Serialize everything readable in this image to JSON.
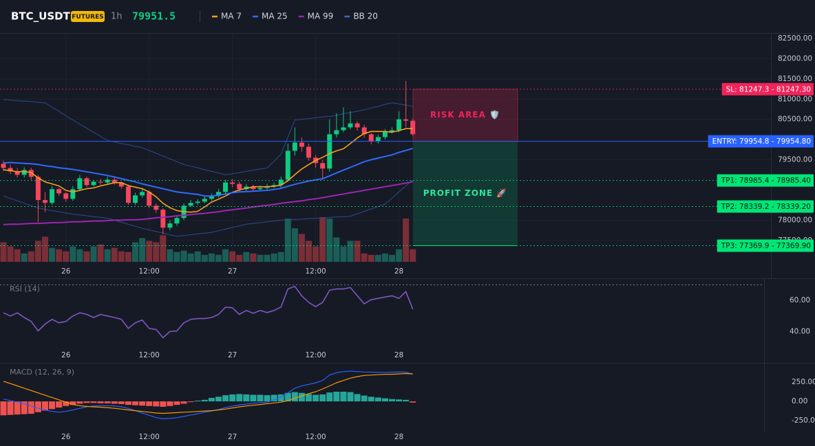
{
  "header": {
    "symbol": "BTC_USDT",
    "badge": "FUTURES",
    "interval": "1h",
    "price": 79951.5
  },
  "chart_data": [
    {
      "type": "candlestick",
      "categories": [
        null,
        null,
        null,
        null,
        null,
        null,
        null,
        null,
        null,
        "26",
        null,
        null,
        null,
        null,
        null,
        null,
        null,
        null,
        null,
        null,
        null,
        "12:00",
        null,
        null,
        null,
        null,
        null,
        null,
        null,
        null,
        null,
        null,
        null,
        "27",
        null,
        null,
        null,
        null,
        null,
        null,
        null,
        null,
        null,
        null,
        null,
        "12:00",
        null,
        null,
        null,
        null,
        null,
        null,
        null,
        null,
        null,
        null,
        null,
        "28",
        null,
        null
      ],
      "open": [
        79400,
        79295,
        79210,
        79125,
        79245,
        79075,
        78500,
        78430,
        78770,
        78665,
        78530,
        78770,
        79040,
        78870,
        78955,
        78935,
        79005,
        78935,
        78835,
        78430,
        78615,
        78700,
        78360,
        78260,
        77815,
        77920,
        78055,
        78360,
        78430,
        78460,
        78530,
        78600,
        78700,
        78935,
        78900,
        78770,
        78835,
        78770,
        78800,
        78835,
        78870,
        79005,
        79720,
        79925,
        79820,
        79550,
        79415,
        79280,
        80130,
        80230,
        80300,
        80400,
        80300,
        80130,
        79960,
        80060,
        80195,
        80230,
        80500,
        80465
      ],
      "high": [
        79480,
        79380,
        79290,
        79310,
        79300,
        79120,
        78700,
        78850,
        78800,
        78700,
        78850,
        79120,
        79080,
        79000,
        79020,
        79080,
        79060,
        78960,
        78880,
        78680,
        78780,
        78740,
        78420,
        78300,
        78000,
        78120,
        78420,
        78500,
        78520,
        78590,
        78660,
        78780,
        79000,
        79020,
        78960,
        78900,
        78880,
        78860,
        78900,
        78930,
        79080,
        79900,
        80300,
        80050,
        79900,
        79620,
        79500,
        80500,
        80650,
        80800,
        80700,
        80450,
        80360,
        80160,
        80120,
        80260,
        80300,
        80700,
        81450,
        80520
      ],
      "low": [
        79220,
        79140,
        79060,
        79060,
        79000,
        77950,
        78200,
        78380,
        78600,
        78460,
        78480,
        78720,
        78820,
        78830,
        78880,
        78900,
        78880,
        78780,
        78380,
        78380,
        78560,
        78300,
        78180,
        77650,
        77750,
        77860,
        78000,
        78330,
        78380,
        78420,
        78480,
        78560,
        78650,
        78820,
        78700,
        78720,
        78720,
        78720,
        78760,
        78790,
        78800,
        78950,
        79600,
        79700,
        79480,
        79300,
        79000,
        79200,
        80050,
        80180,
        80250,
        80220,
        80050,
        79880,
        79900,
        80000,
        80150,
        80180,
        80300,
        80080
      ],
      "close": [
        79295,
        79210,
        79125,
        79245,
        79075,
        78500,
        78430,
        78770,
        78665,
        78530,
        78770,
        79040,
        78870,
        78955,
        78935,
        79005,
        78935,
        78835,
        78430,
        78615,
        78700,
        78360,
        78260,
        77815,
        77920,
        78055,
        78360,
        78430,
        78460,
        78530,
        78600,
        78700,
        78935,
        78900,
        78770,
        78835,
        78770,
        78800,
        78835,
        78870,
        79005,
        79720,
        79925,
        79820,
        79550,
        79415,
        79280,
        80130,
        80230,
        80300,
        80400,
        80300,
        80130,
        79960,
        80060,
        80195,
        80230,
        80500,
        80465,
        80130
      ],
      "volume": [
        280,
        220,
        180,
        120,
        150,
        300,
        360,
        200,
        180,
        150,
        220,
        180,
        150,
        220,
        250,
        180,
        200,
        150,
        140,
        280,
        340,
        300,
        280,
        380,
        180,
        140,
        160,
        120,
        150,
        100,
        120,
        100,
        180,
        150,
        100,
        140,
        120,
        100,
        100,
        120,
        140,
        620,
        480,
        400,
        300,
        220,
        640,
        620,
        350,
        220,
        300,
        300,
        120,
        100,
        100,
        120,
        100,
        180,
        620,
        180
      ],
      "up_color": "#0ecb81",
      "down_color": "#f6465d",
      "volume_up_color": "#1b5e57",
      "volume_down_color": "#7a2e38",
      "series": [
        {
          "name": "MA 7",
          "color": "#f7a21b",
          "values": [
            79250,
            79230,
            79200,
            79210,
            79180,
            79050,
            78950,
            78900,
            78850,
            78740,
            78700,
            78740,
            78780,
            78800,
            78850,
            78890,
            78930,
            78930,
            78860,
            78820,
            78780,
            78700,
            78580,
            78420,
            78310,
            78240,
            78210,
            78200,
            78220,
            78330,
            78450,
            78520,
            78600,
            78690,
            78750,
            78790,
            78830,
            78830,
            78830,
            78840,
            78870,
            78980,
            79130,
            79270,
            79380,
            79480,
            79560,
            79650,
            79720,
            79770,
            79900,
            80040,
            80150,
            80200,
            80200,
            80200,
            80180,
            80220,
            80270,
            80270
          ]
        },
        {
          "name": "MA 25",
          "color": "#2f6bff",
          "values": [
            79420,
            79430,
            79420,
            79410,
            79400,
            79380,
            79350,
            79330,
            79300,
            79280,
            79260,
            79230,
            79200,
            79170,
            79140,
            79110,
            79070,
            79030,
            78990,
            78950,
            78900,
            78860,
            78820,
            78780,
            78740,
            78700,
            78680,
            78660,
            78640,
            78600,
            78600,
            78620,
            78650,
            78680,
            78700,
            78710,
            78720,
            78730,
            78740,
            78760,
            78790,
            78840,
            78890,
            78930,
            78970,
            79000,
            79030,
            79100,
            79170,
            79240,
            79310,
            79380,
            79450,
            79500,
            79540,
            79580,
            79620,
            79680,
            79730,
            79780
          ]
        },
        {
          "name": "MA 99",
          "color": "#9c27b0",
          "values": [
            77890,
            77900,
            77900,
            77910,
            77920,
            77920,
            77930,
            77940,
            77940,
            77950,
            77960,
            77960,
            77970,
            77980,
            77980,
            77990,
            78000,
            78000,
            78010,
            78010,
            78020,
            78040,
            78060,
            78070,
            78090,
            78110,
            78120,
            78140,
            78160,
            78170,
            78190,
            78210,
            78240,
            78260,
            78280,
            78300,
            78330,
            78350,
            78370,
            78390,
            78420,
            78440,
            78460,
            78480,
            78510,
            78530,
            78560,
            78590,
            78620,
            78650,
            78680,
            78710,
            78740,
            78770,
            78800,
            78830,
            78860,
            78890,
            78920,
            78955
          ]
        },
        {
          "name": "BB 20",
          "color": "#2a4c8f",
          "upper": [
            80990,
            80980,
            80960,
            80950,
            80940,
            80920,
            80910,
            80800,
            80700,
            80590,
            80485,
            80380,
            80280,
            80180,
            80080,
            79975,
            79940,
            79900,
            79870,
            79830,
            79800,
            79730,
            79660,
            79590,
            79520,
            79450,
            79380,
            79340,
            79300,
            79250,
            79210,
            79170,
            79125,
            79150,
            79180,
            79210,
            79240,
            79270,
            79295,
            79460,
            79635,
            80060,
            80485,
            80500,
            80520,
            80540,
            80560,
            80570,
            80600,
            80640,
            80670,
            80700,
            80740,
            80780,
            80820,
            80870,
            80910,
            80880,
            80850,
            80825
          ],
          "lower": [
            78600,
            78540,
            78480,
            78420,
            78360,
            78300,
            78270,
            78240,
            78210,
            78180,
            78150,
            78130,
            78110,
            78090,
            78070,
            78050,
            78000,
            77950,
            77900,
            77850,
            77800,
            77760,
            77720,
            77680,
            77640,
            77600,
            77620,
            77640,
            77660,
            77680,
            77700,
            77740,
            77780,
            77820,
            77860,
            77900,
            77920,
            77940,
            77960,
            77980,
            78000,
            78010,
            78020,
            78030,
            78040,
            78050,
            78060,
            78070,
            78080,
            78090,
            78100,
            78160,
            78220,
            78280,
            78340,
            78400,
            78550,
            78700,
            78850,
            79000
          ]
        }
      ],
      "ylim": [
        76560,
        82640
      ],
      "yticks": [
        {
          "value": 82500,
          "label": "82500.00"
        },
        {
          "value": 82000,
          "label": "82000.00"
        },
        {
          "value": 81500,
          "label": "81500.00"
        },
        {
          "value": 81000,
          "label": "81000.00"
        },
        {
          "value": 80500,
          "label": "80500.00"
        },
        {
          "value": 79500,
          "label": "79500.00"
        },
        {
          "value": 78000,
          "label": "78000.00"
        },
        {
          "value": 77500,
          "label": "77500.00"
        }
      ],
      "levels": [
        {
          "label": "SL: 81247.3 - 81247.30",
          "value": 81247.3,
          "color": "#f0245a",
          "text_color": "#ffffff",
          "line_style": "dotted"
        },
        {
          "label": "ENTRY: 79954.8 - 79954.80",
          "value": 79954.8,
          "color": "#2962ff",
          "text_color": "#ffffff",
          "line_style": "solid"
        },
        {
          "label": "TP1: 78985.4 - 78985.40",
          "value": 78985.4,
          "color": "#00e676",
          "text_color": "#0b1a12",
          "line_style": "dotted"
        },
        {
          "label": "TP2: 78339.2 - 78339.20",
          "value": 78339.2,
          "color": "#00e676",
          "text_color": "#0b1a12",
          "line_style": "dotted"
        },
        {
          "label": "TP3: 77369.9 - 77369.90",
          "value": 77369.9,
          "color": "#00e676",
          "text_color": "#0b1a12",
          "line_style": "dotted"
        }
      ],
      "annotations": [
        "RISK AREA 🛡️",
        "PROFIT ZONE 🚀"
      ]
    },
    {
      "type": "line",
      "title": "RSI (14)",
      "color": "#7e57c2",
      "categories": [
        null,
        null,
        null,
        null,
        null,
        null,
        null,
        null,
        null,
        "26",
        null,
        null,
        null,
        null,
        null,
        null,
        null,
        null,
        null,
        null,
        null,
        "12:00",
        null,
        null,
        null,
        null,
        null,
        null,
        null,
        null,
        null,
        null,
        null,
        "27",
        null,
        null,
        null,
        null,
        null,
        null,
        null,
        null,
        null,
        null,
        null,
        "12:00",
        null,
        null,
        null,
        null,
        null,
        null,
        null,
        null,
        null,
        null,
        null,
        "28",
        null,
        null
      ],
      "values": [
        52,
        50,
        52,
        49,
        46.5,
        40.4,
        44.8,
        47.8,
        45.6,
        46.5,
        50,
        52,
        51,
        49,
        51,
        50,
        49,
        47.8,
        42,
        45.6,
        47.4,
        42,
        41.3,
        36,
        40,
        40.4,
        45.6,
        47.8,
        48.3,
        48.3,
        49,
        51,
        55.7,
        55.3,
        51,
        53.5,
        51.7,
        53.5,
        52.2,
        53.5,
        55.7,
        67.4,
        69,
        63,
        58.7,
        56,
        58.7,
        66.5,
        67.4,
        67.4,
        68.3,
        63,
        57.8,
        60.4,
        61.3,
        62.2,
        63,
        61.3,
        65.7,
        54.3
      ],
      "ylim": [
        30,
        72
      ],
      "yticks": [
        {
          "value": 60,
          "label": "60.00"
        },
        {
          "value": 40,
          "label": "40.00"
        }
      ],
      "levels": [
        70
      ]
    },
    {
      "type": "macd",
      "title": "MACD (12, 26, 9)",
      "categories": [
        null,
        null,
        null,
        null,
        null,
        null,
        null,
        null,
        null,
        "26",
        null,
        null,
        null,
        null,
        null,
        null,
        null,
        null,
        null,
        null,
        null,
        "12:00",
        null,
        null,
        null,
        null,
        null,
        null,
        null,
        null,
        null,
        null,
        null,
        "27",
        null,
        null,
        null,
        null,
        null,
        null,
        null,
        null,
        null,
        null,
        null,
        "12:00",
        null,
        null,
        null,
        null,
        null,
        null,
        null,
        null,
        null,
        null,
        null,
        "28",
        null,
        null
      ],
      "macd": [
        30,
        10,
        -10,
        -30,
        -60,
        -90,
        -110,
        -130,
        -140,
        -130,
        -110,
        -90,
        -70,
        -60,
        -55,
        -55,
        -60,
        -70,
        -90,
        -120,
        -150,
        -180,
        -210,
        -225,
        -220,
        -210,
        -195,
        -175,
        -160,
        -140,
        -125,
        -105,
        -80,
        -60,
        -45,
        -35,
        -25,
        -15,
        -10,
        20,
        60,
        110,
        170,
        200,
        220,
        240,
        270,
        340,
        370,
        385,
        390,
        385,
        380,
        378,
        375,
        375,
        378,
        380,
        378,
        350
      ],
      "signal": [
        260,
        230,
        200,
        170,
        140,
        110,
        80,
        50,
        20,
        -10,
        -40,
        -55,
        -65,
        -70,
        -75,
        -80,
        -90,
        -100,
        -110,
        -120,
        -130,
        -140,
        -150,
        -155,
        -150,
        -145,
        -140,
        -135,
        -130,
        -125,
        -120,
        -110,
        -100,
        -85,
        -70,
        -60,
        -50,
        -40,
        -30,
        -20,
        -10,
        10,
        40,
        70,
        100,
        125,
        160,
        200,
        240,
        270,
        300,
        320,
        335,
        340,
        345,
        350,
        350,
        355,
        360,
        355
      ],
      "histogram": [
        -180,
        -175,
        -170,
        -165,
        -160,
        -140,
        -120,
        -100,
        -80,
        -60,
        -45,
        -30,
        -20,
        -20,
        -25,
        -25,
        -30,
        -35,
        -45,
        -50,
        -55,
        -60,
        -65,
        -70,
        -60,
        -45,
        -30,
        -10,
        10,
        20,
        45,
        60,
        80,
        90,
        95,
        90,
        85,
        85,
        80,
        85,
        90,
        110,
        120,
        110,
        95,
        85,
        90,
        115,
        125,
        125,
        120,
        95,
        75,
        60,
        50,
        40,
        30,
        25,
        20,
        -15
      ],
      "macd_color": "#2962ff",
      "signal_color": "#ff9800",
      "up_color": "#26a69a",
      "down_color": "#ef5350",
      "ylim": [
        -390,
        480
      ],
      "yticks": [
        {
          "value": 250,
          "label": "250.00"
        },
        {
          "value": 0,
          "label": "0.00"
        },
        {
          "value": -250,
          "label": "-250.00"
        }
      ]
    }
  ]
}
